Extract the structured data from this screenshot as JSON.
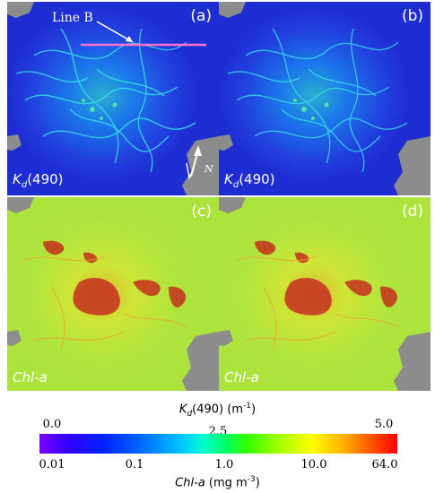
{
  "panels": [
    {
      "label": "(a)",
      "variable": "Kd",
      "variable_sub": "d",
      "variable_suffix": "(490)",
      "type": "kd"
    },
    {
      "label": "(b)",
      "variable": "K",
      "variable_sub": "d",
      "variable_suffix": "(490)",
      "type": "kd"
    },
    {
      "label": "(c)",
      "variable": "Chl-a",
      "type": "chl"
    },
    {
      "label": "(d)",
      "variable": "Chl-a",
      "type": "chl"
    }
  ],
  "annotations": {
    "line_label": "Line B",
    "north_label": "N"
  },
  "colorbar": {
    "top_title_main": "K",
    "top_title_sub": "d",
    "top_title_rest": "(490) (m",
    "top_title_sup": "-1",
    "top_title_end": ")",
    "top_ticks": [
      "0.0",
      "2.5",
      "5.0"
    ],
    "bottom_ticks": [
      "0.01",
      "0.1",
      "1.0",
      "10.0",
      "64.0"
    ],
    "bottom_title_main": "Chl-a",
    "bottom_title_rest": " (mg m",
    "bottom_title_sup": "-3",
    "bottom_title_end": ")"
  },
  "colors": {
    "kd_background": "#1f3bd6",
    "chl_background": "#b8e63a",
    "land": "#8c8c8c",
    "line_b": "#ff6fd0"
  }
}
